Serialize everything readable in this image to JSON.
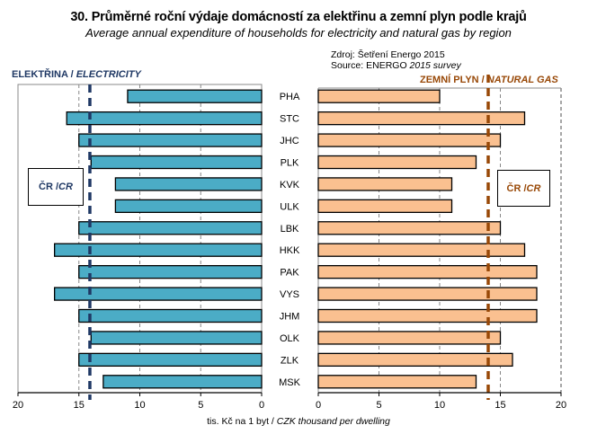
{
  "header": {
    "title": "30. Průměrné roční výdaje domácností za elektřinu a zemní plyn podle krajů",
    "subtitle": "Average annual expenditure of households for electricity and natural gas by region",
    "source_cz": "Zdroj: Šetření Energo 2015",
    "source_en_prefix": "Source: ENERGO ",
    "source_en_italic": "2015 survey"
  },
  "colors": {
    "electricity_bar": "#4BACC6",
    "gas_bar": "#FAC090",
    "electricity_cr_line": "#1F3864",
    "gas_cr_line": "#984807"
  },
  "chart_data": [
    {
      "type": "bar",
      "orientation": "horizontal-reversed",
      "title_cz": "ELEKTŘINA / ",
      "title_en": "ELECTRICITY",
      "categories": [
        "PHA",
        "STC",
        "JHC",
        "PLK",
        "KVK",
        "ULK",
        "LBK",
        "HKK",
        "PAK",
        "VYS",
        "JHM",
        "OLK",
        "ZLK",
        "MSK"
      ],
      "values": [
        11,
        16,
        15,
        14,
        12,
        12,
        15,
        17,
        15,
        17,
        15,
        14,
        15,
        13
      ],
      "reference_line": {
        "label_cz": "ČR / ",
        "label_en": "CR",
        "value": 14.1
      },
      "xlim": [
        0,
        20
      ],
      "xticks": [
        20,
        15,
        10,
        5,
        0
      ],
      "grid": "vertical-dashed"
    },
    {
      "type": "bar",
      "orientation": "horizontal",
      "title_cz": "ZEMNÍ PLYN / ",
      "title_en": "NATURAL GAS",
      "categories": [
        "PHA",
        "STC",
        "JHC",
        "PLK",
        "KVK",
        "ULK",
        "LBK",
        "HKK",
        "PAK",
        "VYS",
        "JHM",
        "OLK",
        "ZLK",
        "MSK"
      ],
      "values": [
        10,
        17,
        15,
        13,
        11,
        11,
        15,
        17,
        18,
        18,
        18,
        15,
        16,
        13
      ],
      "reference_line": {
        "label_cz": "ČR / ",
        "label_en": "CR",
        "value": 14
      },
      "xlim": [
        0,
        20
      ],
      "xticks": [
        0,
        5,
        10,
        15,
        20
      ],
      "grid": "vertical-dashed"
    }
  ],
  "xlabel_cz": "tis. Kč na 1 byt / ",
  "xlabel_en": "CZK thousand per dwelling"
}
